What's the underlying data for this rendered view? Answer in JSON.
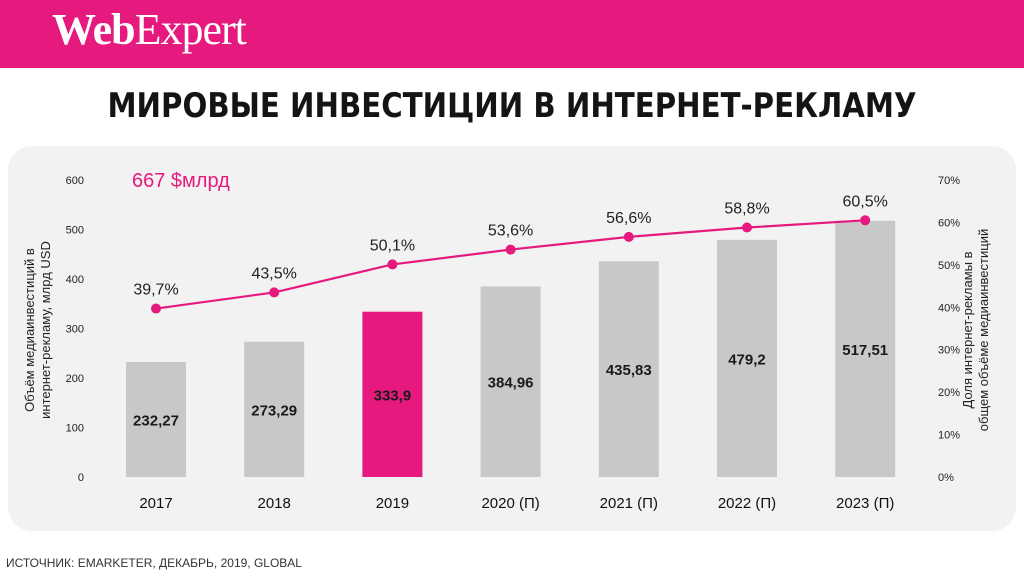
{
  "brand": {
    "name_bold": "Web",
    "name_regular": "Expert"
  },
  "title": "МИРОВЫЕ ИНВЕСТИЦИИ В ИНТЕРНЕТ-РЕКЛАМУ",
  "source": "Источник: eMarketer, Декабрь, 2019, global",
  "colors": {
    "accent": "#e6197e",
    "bar": "#c8c8c8",
    "highlight_bar": "#e6197e",
    "line": "#e6197e"
  },
  "chart_data": {
    "type": "bar",
    "title": "",
    "annotation": "667 $млрд",
    "categories": [
      "2017",
      "2018",
      "2019",
      "2020 (П)",
      "2021 (П)",
      "2022 (П)",
      "2023 (П)"
    ],
    "highlight_index": 2,
    "ylabel": "Объём медиаинвестиций в интернет-рекламу, млрд USD",
    "ylim": [
      0,
      600
    ],
    "yticks": [
      "0",
      "100",
      "200",
      "300",
      "400",
      "500",
      "600"
    ],
    "y2label": "Доля интернет-рекламы в общем объёме медиаинвестиций",
    "y2lim": [
      0,
      70
    ],
    "y2ticks": [
      "0%",
      "10%",
      "20%",
      "30%",
      "40%",
      "50%",
      "60%",
      "70%"
    ],
    "grid": false,
    "legend": "none",
    "series": [
      {
        "type": "bar",
        "axis": "left",
        "values": [
          232.27,
          273.29,
          333.9,
          384.96,
          435.83,
          479.2,
          517.51
        ],
        "labels": [
          "232,27",
          "273,29",
          "333,9",
          "384,96",
          "435,83",
          "479,2",
          "517,51"
        ]
      },
      {
        "type": "line",
        "axis": "right",
        "values": [
          39.7,
          43.5,
          50.1,
          53.6,
          56.6,
          58.8,
          60.5
        ],
        "labels": [
          "39,7%",
          "43,5%",
          "50,1%",
          "53,6%",
          "56,6%",
          "58,8%",
          "60,5%"
        ]
      }
    ]
  }
}
